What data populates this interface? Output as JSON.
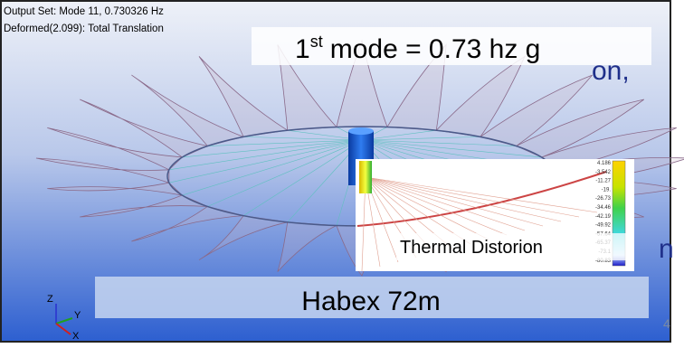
{
  "header": {
    "output_set": "Output Set: Mode 11, 0.730326 Hz",
    "deformed": "Deformed(2.099): Total Translation"
  },
  "callout": {
    "base": "1",
    "superscript": "st",
    "rest": "mode = 0.73 hz g"
  },
  "slide_fragments": [
    "on,",
    "n"
  ],
  "inset": {
    "label": "Thermal Distorion",
    "legend": [
      "4.186",
      "-3.542",
      "-11.27",
      "-19.",
      "-26.73",
      "-34.46",
      "-42.19",
      "-49.92",
      "-57.64",
      "-65.37",
      "-73.1",
      "-80.83"
    ]
  },
  "triad": {
    "z": "Z",
    "y": "Y",
    "x": "X"
  },
  "footer": {
    "title": "Habex 72m",
    "page": "4"
  }
}
